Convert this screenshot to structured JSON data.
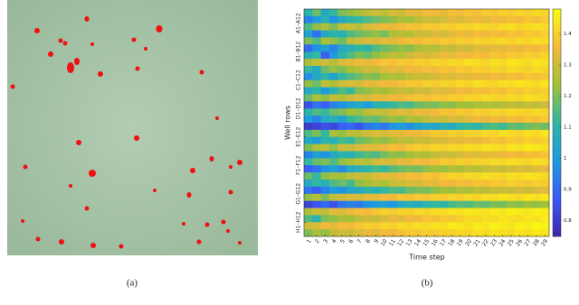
{
  "panel_a": {
    "caption": "(a)"
  },
  "chart_data": {
    "type": "heatmap",
    "caption": "(b)",
    "x_label": "Time step",
    "y_label": "Well rows",
    "x": [
      1,
      2,
      3,
      4,
      5,
      6,
      7,
      8,
      9,
      10,
      11,
      12,
      13,
      14,
      15,
      16,
      17,
      18,
      19,
      20,
      21,
      22,
      23,
      24,
      25,
      26,
      27,
      28,
      29
    ],
    "row_groups": [
      "A1–A12",
      "B1–B12",
      "C1–C12",
      "D1–D12",
      "E1–E12",
      "F1–F12",
      "G1–G12",
      "H1–H12"
    ],
    "clim": [
      0.75,
      1.48
    ],
    "colorbar_ticks": [
      0.8,
      0.9,
      1,
      1.1,
      1.2,
      1.3,
      1.4
    ],
    "colormap": [
      "#3e26a8",
      "#3b58f7",
      "#1d9be0",
      "#2eb7a2",
      "#a2c037",
      "#f5b93c",
      "#f9fb0e"
    ],
    "values": [
      [
        1.1,
        1.18,
        1.05,
        1.12,
        1.2,
        1.22,
        1.25,
        1.28,
        1.3,
        1.27,
        1.32,
        1.3,
        1.34,
        1.33,
        1.36,
        1.35,
        1.34,
        1.37,
        1.36,
        1.38,
        1.37,
        1.39,
        1.38,
        1.4,
        1.39,
        1.41,
        1.4,
        1.42,
        1.41
      ],
      [
        0.95,
        1.0,
        1.08,
        0.98,
        1.05,
        1.1,
        1.12,
        1.15,
        1.18,
        1.2,
        1.22,
        1.25,
        1.24,
        1.28,
        1.3,
        1.29,
        1.31,
        1.33,
        1.32,
        1.34,
        1.35,
        1.33,
        1.36,
        1.35,
        1.37,
        1.36,
        1.38,
        1.37,
        1.39
      ],
      [
        1.15,
        1.22,
        1.25,
        1.2,
        1.28,
        1.3,
        1.27,
        1.32,
        1.33,
        1.35,
        1.34,
        1.36,
        1.38,
        1.37,
        1.39,
        1.38,
        1.4,
        1.39,
        1.41,
        1.4,
        1.42,
        1.41,
        1.4,
        1.42,
        1.43,
        1.41,
        1.42,
        1.43,
        1.42
      ],
      [
        1.02,
        0.92,
        1.05,
        1.1,
        1.08,
        1.15,
        1.18,
        1.2,
        1.22,
        1.19,
        1.25,
        1.27,
        1.26,
        1.3,
        1.29,
        1.32,
        1.31,
        1.33,
        1.35,
        1.34,
        1.36,
        1.35,
        1.37,
        1.36,
        1.38,
        1.37,
        1.39,
        1.38,
        1.4
      ],
      [
        1.2,
        1.15,
        1.25,
        1.22,
        1.18,
        1.28,
        1.3,
        1.32,
        1.31,
        1.34,
        1.33,
        1.35,
        1.37,
        1.36,
        1.38,
        1.37,
        1.39,
        1.38,
        1.4,
        1.39,
        1.41,
        1.4,
        1.41,
        1.42,
        1.4,
        1.42,
        1.41,
        1.43,
        1.42
      ],
      [
        0.9,
        0.98,
        1.02,
        0.95,
        1.05,
        1.08,
        1.12,
        1.1,
        1.15,
        1.18,
        1.2,
        1.22,
        1.21,
        1.25,
        1.27,
        1.26,
        1.29,
        1.28,
        1.31,
        1.3,
        1.33,
        1.32,
        1.34,
        1.33,
        1.35,
        1.34,
        1.36,
        1.35,
        1.37
      ],
      [
        1.08,
        1.12,
        0.88,
        1.0,
        1.1,
        1.15,
        1.2,
        1.18,
        1.22,
        1.25,
        1.28,
        1.27,
        1.3,
        1.32,
        1.31,
        1.33,
        1.35,
        1.34,
        1.36,
        1.35,
        1.37,
        1.36,
        1.38,
        1.37,
        1.39,
        1.38,
        1.4,
        1.39,
        1.41
      ],
      [
        1.25,
        1.28,
        1.3,
        1.27,
        1.32,
        1.33,
        1.35,
        1.34,
        1.36,
        1.38,
        1.37,
        1.39,
        1.38,
        1.4,
        1.39,
        1.41,
        1.4,
        1.42,
        1.41,
        1.43,
        1.42,
        1.41,
        1.43,
        1.42,
        1.44,
        1.43,
        1.42,
        1.44,
        1.43
      ],
      [
        1.12,
        1.05,
        1.18,
        1.22,
        1.2,
        1.25,
        1.27,
        1.3,
        1.29,
        1.32,
        1.34,
        1.33,
        1.36,
        1.35,
        1.37,
        1.36,
        1.38,
        1.37,
        1.39,
        1.38,
        1.4,
        1.39,
        1.41,
        1.4,
        1.42,
        1.41,
        1.4,
        1.42,
        1.41
      ],
      [
        0.98,
        1.05,
        1.1,
        1.02,
        1.12,
        1.15,
        1.18,
        1.21,
        1.2,
        1.24,
        1.26,
        1.25,
        1.28,
        1.3,
        1.29,
        1.31,
        1.33,
        1.32,
        1.34,
        1.33,
        1.35,
        1.34,
        1.36,
        1.35,
        1.37,
        1.36,
        1.38,
        1.37,
        1.38
      ],
      [
        1.22,
        1.18,
        1.28,
        1.25,
        1.3,
        1.32,
        1.31,
        1.34,
        1.33,
        1.36,
        1.35,
        1.37,
        1.39,
        1.38,
        1.4,
        1.39,
        1.41,
        1.4,
        1.42,
        1.41,
        1.43,
        1.42,
        1.41,
        1.43,
        1.42,
        1.44,
        1.43,
        1.42,
        1.44
      ],
      [
        1.05,
        1.1,
        1.0,
        1.08,
        1.15,
        1.12,
        1.2,
        1.22,
        1.25,
        1.24,
        1.27,
        1.29,
        1.28,
        1.31,
        1.3,
        1.33,
        1.32,
        1.34,
        1.36,
        1.35,
        1.37,
        1.36,
        1.38,
        1.37,
        1.39,
        1.38,
        1.4,
        1.39,
        1.4
      ],
      [
        1.18,
        1.25,
        1.22,
        1.28,
        1.26,
        1.3,
        1.32,
        1.31,
        1.34,
        1.33,
        1.36,
        1.35,
        1.37,
        1.38,
        1.37,
        1.39,
        1.38,
        1.4,
        1.39,
        1.41,
        1.4,
        1.42,
        1.41,
        1.4,
        1.42,
        1.41,
        1.43,
        1.42,
        1.41
      ],
      [
        0.85,
        0.92,
        0.88,
        0.95,
        0.98,
        1.02,
        1.05,
        1.0,
        1.08,
        1.1,
        1.12,
        1.15,
        1.14,
        1.18,
        1.2,
        1.19,
        1.22,
        1.21,
        1.24,
        1.23,
        1.25,
        1.26,
        1.25,
        1.27,
        1.28,
        1.27,
        1.29,
        1.28,
        1.3
      ],
      [
        1.1,
        1.15,
        1.12,
        1.18,
        1.2,
        1.24,
        1.22,
        1.27,
        1.29,
        1.28,
        1.31,
        1.33,
        1.32,
        1.35,
        1.34,
        1.36,
        1.38,
        1.37,
        1.39,
        1.38,
        1.4,
        1.39,
        1.41,
        1.4,
        1.42,
        1.41,
        1.4,
        1.42,
        1.41
      ],
      [
        1.0,
        0.95,
        1.05,
        1.08,
        1.02,
        1.12,
        1.15,
        1.18,
        1.17,
        1.21,
        1.23,
        1.22,
        1.26,
        1.25,
        1.28,
        1.3,
        1.29,
        1.32,
        1.31,
        1.33,
        1.35,
        1.34,
        1.36,
        1.35,
        1.37,
        1.36,
        1.38,
        1.37,
        1.39
      ],
      [
        0.8,
        0.82,
        0.85,
        0.83,
        0.88,
        0.9,
        0.86,
        0.92,
        0.95,
        0.93,
        0.98,
        1.0,
        0.97,
        1.02,
        1.05,
        1.03,
        1.08,
        1.06,
        1.1,
        1.12,
        1.1,
        1.14,
        1.15,
        1.13,
        1.17,
        1.16,
        1.18,
        1.2,
        1.18
      ],
      [
        1.15,
        1.2,
        1.12,
        1.25,
        1.22,
        1.28,
        1.27,
        1.3,
        1.32,
        1.31,
        1.34,
        1.33,
        1.36,
        1.35,
        1.37,
        1.39,
        1.38,
        1.4,
        1.39,
        1.41,
        1.4,
        1.42,
        1.41,
        1.43,
        1.42,
        1.41,
        1.43,
        1.42,
        1.44
      ],
      [
        1.05,
        1.0,
        1.1,
        1.08,
        1.14,
        1.12,
        1.18,
        1.2,
        1.23,
        1.22,
        1.25,
        1.28,
        1.27,
        1.3,
        1.29,
        1.32,
        1.31,
        1.34,
        1.33,
        1.35,
        1.34,
        1.36,
        1.38,
        1.37,
        1.39,
        1.38,
        1.4,
        1.39,
        1.4
      ],
      [
        1.2,
        1.25,
        1.28,
        1.22,
        1.3,
        1.29,
        1.32,
        1.34,
        1.33,
        1.35,
        1.37,
        1.36,
        1.38,
        1.4,
        1.39,
        1.41,
        1.4,
        1.42,
        1.41,
        1.43,
        1.42,
        1.44,
        1.43,
        1.42,
        1.44,
        1.43,
        1.45,
        1.44,
        1.43
      ],
      [
        0.95,
        1.02,
        0.98,
        1.05,
        1.1,
        1.08,
        1.13,
        1.16,
        1.15,
        1.19,
        1.22,
        1.21,
        1.24,
        1.26,
        1.25,
        1.28,
        1.3,
        1.29,
        1.31,
        1.33,
        1.32,
        1.34,
        1.33,
        1.35,
        1.36,
        1.35,
        1.37,
        1.36,
        1.38
      ],
      [
        1.12,
        1.18,
        1.2,
        1.15,
        1.22,
        1.25,
        1.28,
        1.26,
        1.3,
        1.32,
        1.31,
        1.34,
        1.33,
        1.36,
        1.35,
        1.37,
        1.39,
        1.38,
        1.4,
        1.39,
        1.41,
        1.4,
        1.42,
        1.41,
        1.43,
        1.42,
        1.41,
        1.43,
        1.42
      ],
      [
        0.88,
        0.92,
        0.98,
        1.02,
        0.96,
        1.05,
        1.08,
        1.1,
        1.14,
        1.12,
        1.16,
        1.18,
        1.2,
        1.19,
        1.22,
        1.24,
        1.23,
        1.26,
        1.25,
        1.28,
        1.27,
        1.29,
        1.3,
        1.29,
        1.31,
        1.32,
        1.31,
        1.33,
        1.34
      ],
      [
        1.18,
        1.12,
        1.22,
        1.25,
        1.24,
        1.28,
        1.3,
        1.29,
        1.32,
        1.34,
        1.33,
        1.35,
        1.37,
        1.36,
        1.38,
        1.37,
        1.39,
        1.41,
        1.4,
        1.42,
        1.41,
        1.43,
        1.42,
        1.41,
        1.43,
        1.42,
        1.44,
        1.43,
        1.42
      ],
      [
        1.05,
        1.12,
        1.08,
        1.15,
        1.18,
        1.14,
        1.22,
        1.24,
        1.27,
        1.25,
        1.29,
        1.3,
        1.32,
        1.31,
        1.34,
        1.33,
        1.36,
        1.35,
        1.37,
        1.36,
        1.38,
        1.37,
        1.39,
        1.38,
        1.4,
        1.39,
        1.38,
        1.4,
        1.39
      ],
      [
        0.92,
        0.88,
        0.95,
        1.0,
        0.98,
        1.04,
        1.06,
        1.1,
        1.08,
        1.12,
        1.15,
        1.14,
        1.18,
        1.2,
        1.19,
        1.22,
        1.24,
        1.23,
        1.26,
        1.25,
        1.28,
        1.27,
        1.29,
        1.3,
        1.29,
        1.31,
        1.3,
        1.32,
        1.33
      ],
      [
        1.22,
        1.26,
        1.2,
        1.28,
        1.3,
        1.32,
        1.31,
        1.34,
        1.33,
        1.36,
        1.35,
        1.38,
        1.37,
        1.39,
        1.38,
        1.4,
        1.39,
        1.41,
        1.4,
        1.42,
        1.41,
        1.43,
        1.42,
        1.44,
        1.43,
        1.42,
        1.44,
        1.43,
        1.45
      ],
      [
        0.82,
        0.86,
        0.9,
        0.85,
        0.92,
        0.95,
        0.93,
        0.98,
        1.0,
        1.02,
        0.99,
        1.05,
        1.08,
        1.06,
        1.1,
        1.12,
        1.1,
        1.14,
        1.16,
        1.15,
        1.18,
        1.17,
        1.2,
        1.19,
        1.22,
        1.21,
        1.23,
        1.22,
        1.24
      ],
      [
        1.25,
        1.3,
        1.28,
        1.33,
        1.32,
        1.35,
        1.37,
        1.36,
        1.38,
        1.4,
        1.39,
        1.41,
        1.4,
        1.42,
        1.41,
        1.43,
        1.42,
        1.44,
        1.43,
        1.45,
        1.44,
        1.43,
        1.45,
        1.44,
        1.46,
        1.45,
        1.44,
        1.46,
        1.45
      ],
      [
        1.15,
        1.1,
        1.2,
        1.22,
        1.25,
        1.24,
        1.28,
        1.3,
        1.29,
        1.32,
        1.34,
        1.33,
        1.36,
        1.35,
        1.38,
        1.37,
        1.39,
        1.38,
        1.4,
        1.42,
        1.41,
        1.43,
        1.42,
        1.44,
        1.43,
        1.42,
        1.44,
        1.43,
        1.45
      ],
      [
        1.3,
        1.32,
        1.35,
        1.33,
        1.37,
        1.36,
        1.38,
        1.4,
        1.39,
        1.41,
        1.4,
        1.42,
        1.41,
        1.43,
        1.42,
        1.44,
        1.43,
        1.45,
        1.44,
        1.43,
        1.45,
        1.44,
        1.46,
        1.45,
        1.44,
        1.46,
        1.45,
        1.47,
        1.46
      ],
      [
        1.2,
        1.25,
        1.22,
        1.28,
        1.3,
        1.29,
        1.32,
        1.34,
        1.33,
        1.36,
        1.35,
        1.37,
        1.39,
        1.38,
        1.4,
        1.39,
        1.41,
        1.4,
        1.42,
        1.41,
        1.43,
        1.42,
        1.44,
        1.43,
        1.42,
        1.44,
        1.43,
        1.45,
        1.44
      ]
    ]
  }
}
